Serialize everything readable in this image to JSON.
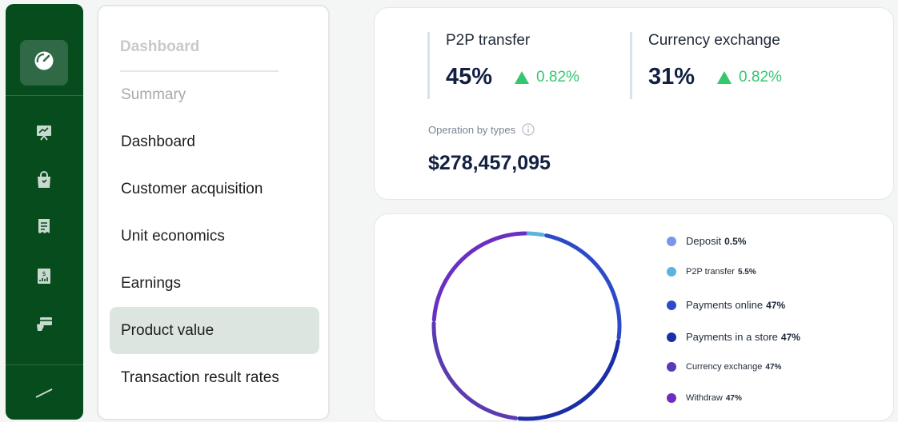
{
  "submenu": {
    "heading": "Dashboard",
    "items": [
      {
        "label": "Summary"
      },
      {
        "label": "Dashboard"
      },
      {
        "label": "Customer acquisition"
      },
      {
        "label": "Unit economics"
      },
      {
        "label": "Earnings"
      },
      {
        "label": "Product value"
      },
      {
        "label": "Transaction result rates"
      }
    ]
  },
  "stats": {
    "p2p": {
      "label": "P2P transfer",
      "value": "45%",
      "change": "0.82%"
    },
    "currency": {
      "label": "Currency exchange",
      "value": "31%",
      "change": "0.82%"
    },
    "operation": {
      "label": "Operation by types",
      "value": "$278,457,095"
    }
  },
  "rail": {
    "icons": [
      "gauge-icon",
      "presentation-chart-icon",
      "shopping-bag-icon",
      "receipt-icon",
      "invoice-icon",
      "card-payment-icon"
    ]
  },
  "colors": {
    "rail_bg": "#064c1d",
    "positive": "#35c770",
    "active_item": "#dde5e0"
  },
  "chart_data": {
    "type": "pie",
    "style": "donut",
    "categories": [
      "Deposit",
      "P2P transfer",
      "Payments online",
      "Payments in a store",
      "Currency exchange",
      "Withdraw"
    ],
    "values": [
      0.5,
      5.5,
      47,
      47,
      47,
      47
    ],
    "value_labels": [
      "0.5%",
      "5.5%",
      "47%",
      "47%",
      "47%",
      "47%"
    ],
    "colors": [
      "#7b96e8",
      "#5ab4dd",
      "#2d4bc9",
      "#1c2ea6",
      "#5b3bb0",
      "#6a2fc2"
    ],
    "legend_position": "right"
  }
}
